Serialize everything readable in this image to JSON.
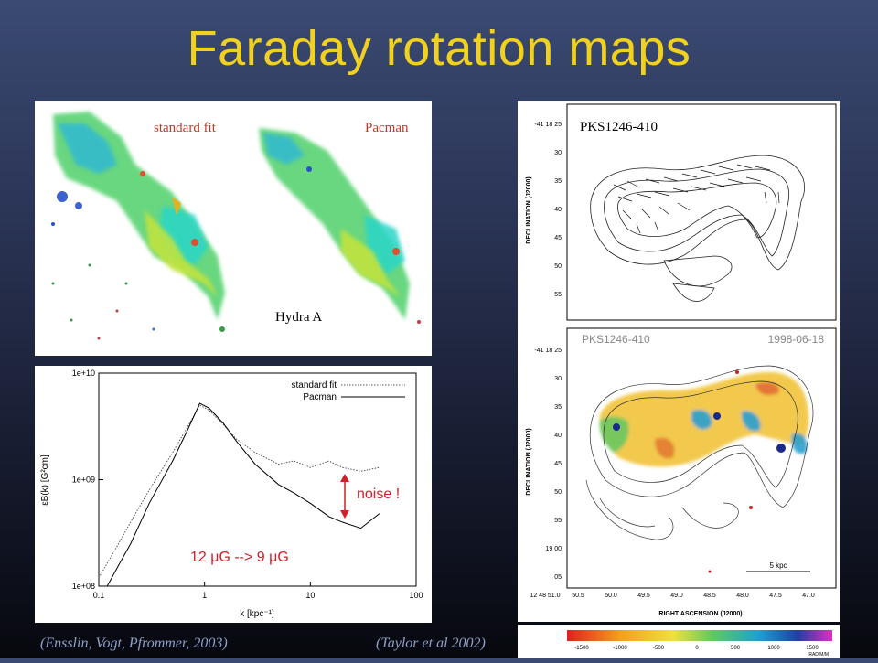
{
  "slide": {
    "title": "Faraday rotation maps",
    "caption_left": "(Ensslin, Vogt, Pfrommer, 2003)",
    "caption_right": "(Taylor et al  2002)"
  },
  "hydra_panel": {
    "label_standard": "standard fit",
    "label_pacman": "Pacman",
    "label_source": "Hydra A"
  },
  "spectrum_panel": {
    "ylabel": "εB(k) [G²cm]",
    "xlabel": "k [kpc⁻¹]",
    "ytick_labels": [
      "1e+10",
      "1e+09",
      "1e+08"
    ],
    "xtick_labels": [
      "0.1",
      "1",
      "10",
      "100"
    ],
    "legend": [
      "standard fit",
      "Pacman"
    ],
    "annotation_noise": "noise !",
    "annotation_field": "12 μG --> 9 μG"
  },
  "pks_top": {
    "source_label": "PKS1246-410",
    "ylabel": "DECLINATION (J2000)",
    "ytick_labels": [
      "-41 18 25",
      "30",
      "35",
      "40",
      "45",
      "50",
      "55"
    ]
  },
  "pks_bottom": {
    "source_label": "PKS1246-410",
    "date_label": "1998-06-18",
    "ylabel": "DECLINATION (J2000)",
    "xlabel": "RIGHT ASCENSION (J2000)",
    "ytick_labels": [
      "-41 18 25",
      "30",
      "35",
      "40",
      "45",
      "50",
      "55",
      "19 00",
      "05"
    ],
    "xtick_labels": [
      "12 48 51.0",
      "50.5",
      "50.0",
      "49.5",
      "49.0",
      "48.5",
      "48.0",
      "47.5",
      "47.0"
    ],
    "scalebar_label": "5 kpc",
    "colorbar_ticks": [
      "-1500",
      "-1000",
      "-500",
      "0",
      "500",
      "1000",
      "1500"
    ],
    "colorbar_unit": "RAD/M/M"
  },
  "chart_data": {
    "type": "line",
    "xscale": "log",
    "yscale": "log",
    "xlim": [
      0.1,
      100
    ],
    "ylim": [
      100000000,
      10000000000
    ],
    "xlabel": "k [kpc⁻¹]",
    "ylabel": "εB(k) [G²cm]",
    "legend_position": "top-right",
    "series": [
      {
        "name": "standard fit",
        "x": [
          0.1,
          0.15,
          0.2,
          0.3,
          0.5,
          0.7,
          0.9,
          1.1,
          1.5,
          2,
          3,
          5,
          7,
          10,
          15,
          20,
          30,
          45
        ],
        "y": [
          120000000,
          240000000,
          400000000,
          800000000,
          1800000000,
          3200000000,
          5000000000,
          4500000000,
          3300000000,
          2400000000,
          1800000000,
          1400000000,
          1500000000,
          1300000000,
          1500000000,
          1300000000,
          1200000000,
          1300000000
        ]
      },
      {
        "name": "Pacman",
        "x": [
          0.12,
          0.15,
          0.2,
          0.3,
          0.5,
          0.7,
          0.9,
          1.1,
          1.5,
          2,
          3,
          5,
          7,
          10,
          15,
          20,
          30,
          45
        ],
        "y": [
          100000000,
          150000000,
          250000000,
          600000000,
          1500000000,
          3000000000,
          5200000000,
          4700000000,
          3400000000,
          2300000000,
          1400000000,
          900000000,
          750000000,
          600000000,
          450000000,
          400000000,
          350000000,
          480000000
        ]
      }
    ]
  }
}
